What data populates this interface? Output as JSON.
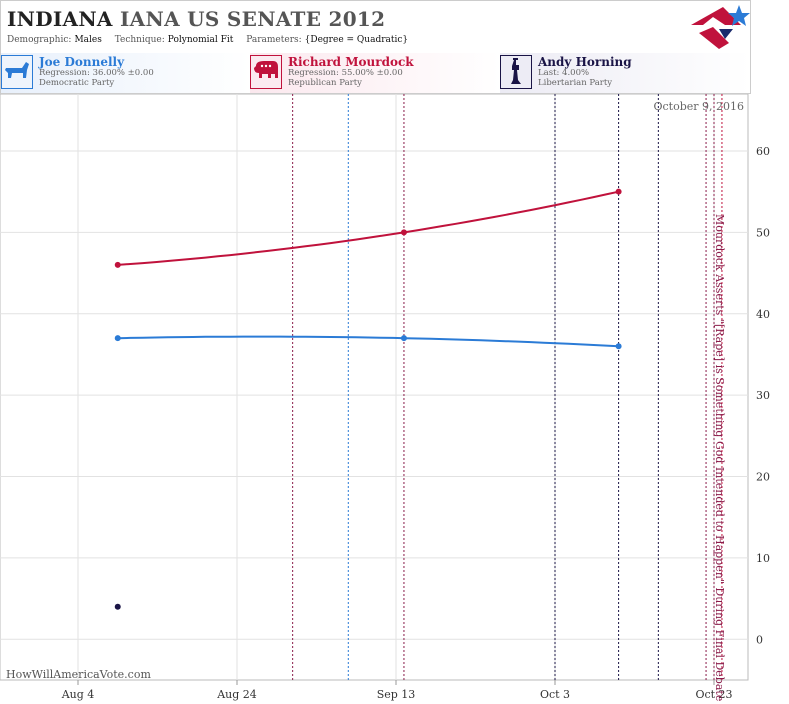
{
  "header": {
    "state": "INDIANA",
    "race": "IANA US SENATE 2012",
    "demographic_label": "Demographic:",
    "demographic_value": "Males",
    "technique_label": "Technique:",
    "technique_value": "Polynomial Fit",
    "parameters_label": "Parameters:",
    "parameters_value": "{Degree = Quadratic}"
  },
  "candidates": [
    {
      "name": "Joe Donnelly",
      "stat": "Regression: 36.00% ±0.00",
      "party": "Democratic Party",
      "color": "#2b7bd6",
      "icon": "donkey-icon"
    },
    {
      "name": "Richard Mourdock",
      "stat": "Regression: 55.00% ±0.00",
      "party": "Republican Party",
      "color": "#c0123c",
      "icon": "elephant-icon"
    },
    {
      "name": "Andy Horning",
      "stat": "Last: 4.00%",
      "party": "Libertarian Party",
      "color": "#1a1446",
      "icon": "liberty-statue-icon"
    }
  ],
  "chart_data": {
    "type": "line",
    "x_ticks": [
      "Aug 4",
      "Aug 24",
      "Sep 13",
      "Oct 3",
      "Oct 23"
    ],
    "y_ticks": [
      0,
      10,
      20,
      30,
      40,
      50,
      60
    ],
    "ylim": [
      -5,
      67
    ],
    "series": [
      {
        "name": "Joe Donnelly",
        "color": "#2b7bd6",
        "x": [
          "2012-08-09",
          "2012-09-14",
          "2012-10-11"
        ],
        "y": [
          37,
          37,
          36
        ]
      },
      {
        "name": "Richard Mourdock",
        "color": "#c0123c",
        "x": [
          "2012-08-09",
          "2012-09-14",
          "2012-10-11"
        ],
        "y": [
          46,
          50,
          55
        ]
      },
      {
        "name": "Andy Horning",
        "color": "#1a1446",
        "x": [
          "2012-08-09"
        ],
        "y": [
          4
        ]
      }
    ],
    "event_lines": [
      {
        "date": "2012-08-31",
        "color": "#8a1c4a"
      },
      {
        "date": "2012-09-07",
        "color": "#2b7bd6"
      },
      {
        "date": "2012-09-14",
        "color": "#8a1c4a"
      },
      {
        "date": "2012-10-03",
        "color": "#1a1446"
      },
      {
        "date": "2012-10-11",
        "color": "#1a1446"
      },
      {
        "date": "2012-10-16",
        "color": "#1a1446"
      },
      {
        "date": "2012-10-22",
        "color": "#8a1c4a"
      },
      {
        "date": "2012-10-23",
        "color": "#8a1c4a"
      },
      {
        "date": "2012-10-24",
        "color": "#c0123c"
      }
    ],
    "date_stamp": "October 9, 2016",
    "annotation": "Mourdock Asserts \"[Rape] is Something God Intended to Happen\" During Final Debate",
    "watermark": "HowWillAmericaVote.com"
  }
}
